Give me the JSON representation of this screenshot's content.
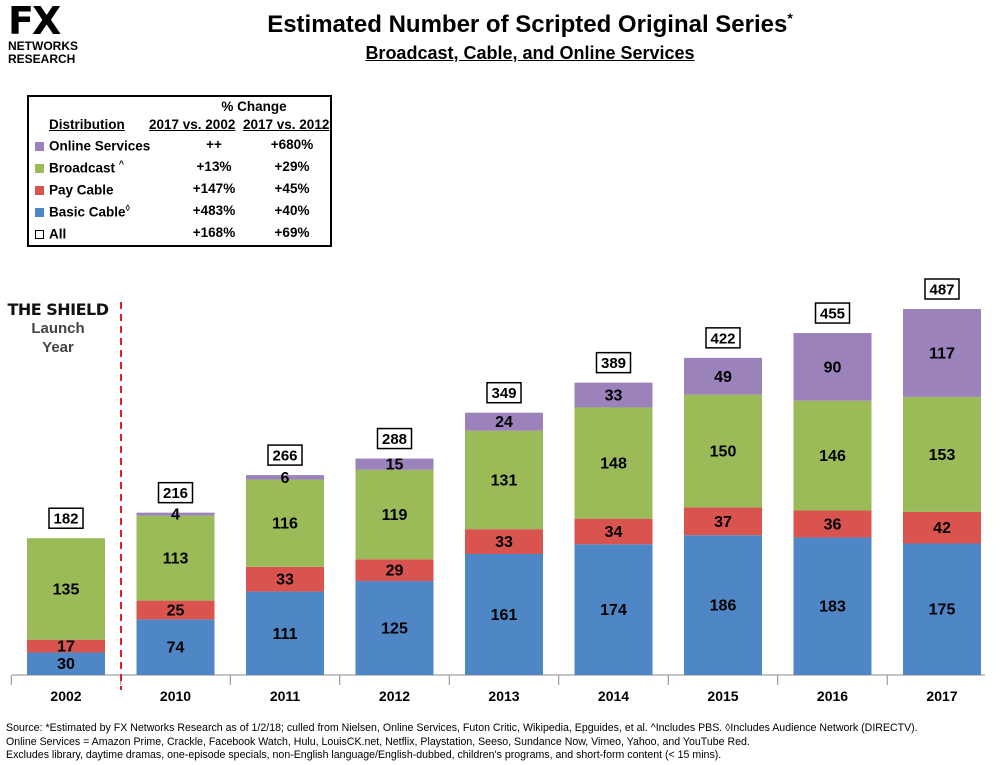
{
  "logo": {
    "brand": "FX",
    "line1": "NETWORKS",
    "line2": "RESEARCH"
  },
  "title": "Estimated Number of Scripted Original Series",
  "title_mark": "*",
  "subtitle": "Broadcast, Cable, and Online Services",
  "legend": {
    "header": "% Change",
    "col0": "Distribution",
    "col1": "2017 vs. 2002",
    "col2": "2017 vs. 2012",
    "rows": [
      {
        "name": "Online Services",
        "mark": "",
        "c1": "++",
        "c2": "+680%",
        "color": "#9B82BA"
      },
      {
        "name": "Broadcast",
        "mark": "^",
        "c1": "+13%",
        "c2": "+29%",
        "color": "#9BBB59"
      },
      {
        "name": "Pay Cable",
        "mark": "",
        "c1": "+147%",
        "c2": "+45%",
        "color": "#D9534F"
      },
      {
        "name": "Basic Cable",
        "mark": "◊",
        "c1": "+483%",
        "c2": "+40%",
        "color": "#4F86C6"
      },
      {
        "name": "All",
        "mark": "",
        "c1": "+168%",
        "c2": "+69%",
        "color": "#ffffff"
      }
    ]
  },
  "annotation": {
    "title": "THE SHIELD",
    "line1": "Launch",
    "line2": "Year"
  },
  "chart_data": {
    "type": "bar",
    "stacked": true,
    "title": "Estimated Number of Scripted Original Series",
    "subtitle": "Broadcast, Cable, and Online Services",
    "categories": [
      "2002",
      "2010",
      "2011",
      "2012",
      "2013",
      "2014",
      "2015",
      "2016",
      "2017"
    ],
    "series": [
      {
        "name": "Basic Cable",
        "color": "#4F86C6",
        "values": [
          30,
          74,
          111,
          125,
          161,
          174,
          186,
          183,
          175
        ]
      },
      {
        "name": "Pay Cable",
        "color": "#D9534F",
        "values": [
          17,
          25,
          33,
          29,
          33,
          34,
          37,
          36,
          42
        ]
      },
      {
        "name": "Broadcast",
        "color": "#9BBB59",
        "values": [
          135,
          113,
          116,
          119,
          131,
          148,
          150,
          146,
          153
        ]
      },
      {
        "name": "Online Services",
        "color": "#9B82BA",
        "values": [
          null,
          4,
          6,
          15,
          24,
          33,
          49,
          90,
          117
        ]
      }
    ],
    "totals": [
      182,
      216,
      266,
      288,
      349,
      389,
      422,
      455,
      487
    ],
    "ylim": [
      0,
      500
    ],
    "xlabel": "",
    "ylabel": "",
    "grid": false
  },
  "source": {
    "line1": "Source:  *Estimated by FX Networks Research as of 1/2/18; culled from Nielsen, Online Services, Futon Critic, Wikipedia, Epguides, et al.  ^Includes PBS.  ◊Includes Audience Network (DIRECTV).",
    "line2": "Online Services = Amazon Prime, Crackle, Facebook Watch, Hulu, LouisCK.net, Netflix, Playstation, Seeso, Sundance Now, Vimeo, Yahoo, and YouTube Red.",
    "line3": "Excludes library, daytime dramas, one-episode specials, non-English language/English-dubbed, children's programs, and short-form content (< 15 mins)."
  }
}
